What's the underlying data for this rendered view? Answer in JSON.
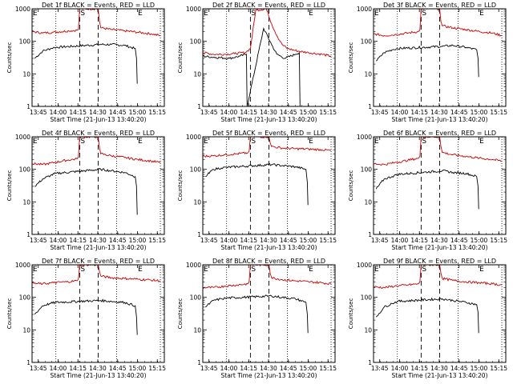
{
  "colors": {
    "events": "#000000",
    "lld": "#cc0000",
    "axes": "#000000",
    "background": "#ffffff"
  },
  "shared": {
    "ylabel": "Counts/sec",
    "xlabel": "Start Time (21-Jun-13 13:40:20)",
    "xticks": [
      "13:45",
      "14:00",
      "14:15",
      "14:30",
      "14:45",
      "15:00",
      "15:15"
    ],
    "yticks": [
      "1",
      "10",
      "100",
      "1000"
    ],
    "markers": [
      {
        "label": "E",
        "t": 0
      },
      {
        "label": "S",
        "t": 36
      },
      {
        "label": "E",
        "t": 79.5
      }
    ],
    "dotted_lines_min": [
      18,
      64,
      97
    ],
    "dashed_lines_min": [
      36,
      50
    ],
    "xlim_min": [
      0,
      100
    ],
    "ylim": [
      1,
      1000
    ],
    "y_scale": "log"
  },
  "chart_data": [
    {
      "type": "line",
      "title": "Det 1f BLACK = Events, RED = LLD",
      "series": [
        {
          "name": "Events",
          "x": [
            2,
            8,
            14,
            17,
            52,
            60,
            70,
            78,
            79,
            79.5
          ],
          "y": [
            30,
            50,
            60,
            65,
            80,
            80,
            75,
            60,
            30,
            5
          ]
        },
        {
          "name": "LLD",
          "x": [
            0,
            8,
            16,
            28,
            34,
            35,
            36,
            50,
            51,
            52,
            60,
            70,
            80,
            90,
            97
          ],
          "y": [
            200,
            180,
            190,
            210,
            220,
            230,
            1000,
            1000,
            400,
            260,
            230,
            210,
            190,
            170,
            150
          ]
        }
      ]
    },
    {
      "type": "line",
      "title": "Det 2f BLACK = Events, RED = LLD",
      "series": [
        {
          "name": "Events",
          "x": [
            0,
            10,
            20,
            28,
            33,
            33.5,
            46,
            52,
            56,
            62,
            70,
            73,
            73.5
          ],
          "y": [
            35,
            32,
            30,
            35,
            40,
            1,
            250,
            80,
            40,
            30,
            40,
            45,
            1
          ]
        },
        {
          "name": "LLD",
          "x": [
            0,
            8,
            16,
            24,
            32,
            36,
            40,
            48,
            52,
            56,
            60,
            64,
            72,
            80,
            90,
            97
          ],
          "y": [
            45,
            40,
            40,
            42,
            45,
            60,
            900,
            1000,
            350,
            150,
            80,
            60,
            50,
            45,
            40,
            35
          ]
        }
      ]
    },
    {
      "type": "line",
      "title": "Det 3f BLACK = Events, RED = LLD",
      "series": [
        {
          "name": "Events",
          "x": [
            2,
            8,
            14,
            18,
            52,
            60,
            70,
            78,
            79,
            79.5
          ],
          "y": [
            25,
            45,
            55,
            60,
            70,
            75,
            65,
            55,
            30,
            8
          ]
        },
        {
          "name": "LLD",
          "x": [
            0,
            8,
            16,
            26,
            34,
            35,
            36,
            50,
            51,
            52,
            60,
            70,
            80,
            90,
            97
          ],
          "y": [
            170,
            150,
            160,
            180,
            200,
            220,
            1000,
            1000,
            400,
            300,
            260,
            230,
            200,
            180,
            150
          ]
        }
      ]
    },
    {
      "type": "line",
      "title": "Det 4f BLACK = Events, RED = LLD",
      "series": [
        {
          "name": "Events",
          "x": [
            2,
            8,
            14,
            18,
            52,
            60,
            70,
            78,
            79,
            79.5
          ],
          "y": [
            30,
            50,
            65,
            75,
            100,
            90,
            80,
            60,
            30,
            4
          ]
        },
        {
          "name": "LLD",
          "x": [
            0,
            8,
            16,
            26,
            34,
            35,
            36,
            50,
            51,
            52,
            60,
            70,
            80,
            90,
            97
          ],
          "y": [
            150,
            140,
            160,
            190,
            210,
            240,
            1000,
            1000,
            450,
            300,
            260,
            230,
            200,
            180,
            160
          ]
        }
      ]
    },
    {
      "type": "line",
      "title": "Det 5f BLACK = Events, RED = LLD",
      "series": [
        {
          "name": "Events",
          "x": [
            2,
            8,
            14,
            18,
            52,
            60,
            70,
            78,
            79,
            79.5
          ],
          "y": [
            60,
            100,
            110,
            115,
            140,
            130,
            120,
            100,
            40,
            8
          ]
        },
        {
          "name": "LLD",
          "x": [
            0,
            8,
            16,
            26,
            34,
            35,
            36,
            50,
            51,
            52,
            60,
            70,
            80,
            90,
            97
          ],
          "y": [
            250,
            260,
            280,
            300,
            320,
            360,
            1000,
            1000,
            650,
            500,
            450,
            430,
            420,
            400,
            380
          ]
        }
      ]
    },
    {
      "type": "line",
      "title": "Det 6f BLACK = Events, RED = LLD",
      "series": [
        {
          "name": "Events",
          "x": [
            2,
            8,
            14,
            18,
            52,
            60,
            70,
            78,
            79,
            79.5
          ],
          "y": [
            25,
            50,
            60,
            70,
            90,
            80,
            75,
            60,
            30,
            6
          ]
        },
        {
          "name": "LLD",
          "x": [
            0,
            8,
            16,
            26,
            34,
            35,
            36,
            50,
            51,
            52,
            60,
            70,
            80,
            90,
            97
          ],
          "y": [
            150,
            140,
            160,
            190,
            220,
            250,
            1000,
            1000,
            500,
            330,
            280,
            250,
            220,
            200,
            180
          ]
        }
      ]
    },
    {
      "type": "line",
      "title": "Det 7f BLACK = Events, RED = LLD",
      "series": [
        {
          "name": "Events",
          "x": [
            2,
            8,
            14,
            18,
            52,
            60,
            70,
            78,
            79,
            79.5
          ],
          "y": [
            30,
            55,
            65,
            70,
            80,
            75,
            70,
            55,
            25,
            7
          ]
        },
        {
          "name": "LLD",
          "x": [
            0,
            8,
            16,
            26,
            34,
            35,
            36,
            50,
            51,
            52,
            60,
            70,
            80,
            90,
            97
          ],
          "y": [
            270,
            260,
            280,
            300,
            320,
            360,
            1000,
            1000,
            600,
            450,
            400,
            380,
            360,
            340,
            320
          ]
        }
      ]
    },
    {
      "type": "line",
      "title": "Det 8f BLACK = Events, RED = LLD",
      "series": [
        {
          "name": "Events",
          "x": [
            2,
            8,
            14,
            18,
            52,
            60,
            70,
            78,
            79,
            79.5
          ],
          "y": [
            50,
            80,
            90,
            95,
            110,
            100,
            90,
            70,
            30,
            8
          ]
        },
        {
          "name": "LLD",
          "x": [
            0,
            8,
            16,
            26,
            34,
            35,
            36,
            50,
            51,
            52,
            60,
            70,
            80,
            90,
            97
          ],
          "y": [
            200,
            200,
            220,
            240,
            260,
            300,
            1000,
            1000,
            550,
            400,
            350,
            320,
            300,
            280,
            260
          ]
        }
      ]
    },
    {
      "type": "line",
      "title": "Det 9f BLACK = Events, RED = LLD",
      "series": [
        {
          "name": "Events",
          "x": [
            2,
            8,
            14,
            18,
            52,
            60,
            70,
            78,
            79,
            79.5
          ],
          "y": [
            25,
            50,
            65,
            75,
            90,
            80,
            70,
            60,
            35,
            8
          ]
        },
        {
          "name": "LLD",
          "x": [
            0,
            8,
            16,
            26,
            34,
            35,
            36,
            50,
            51,
            52,
            60,
            70,
            80,
            90,
            97
          ],
          "y": [
            210,
            200,
            220,
            240,
            260,
            300,
            1000,
            1000,
            550,
            380,
            330,
            300,
            280,
            260,
            240
          ]
        }
      ]
    }
  ]
}
